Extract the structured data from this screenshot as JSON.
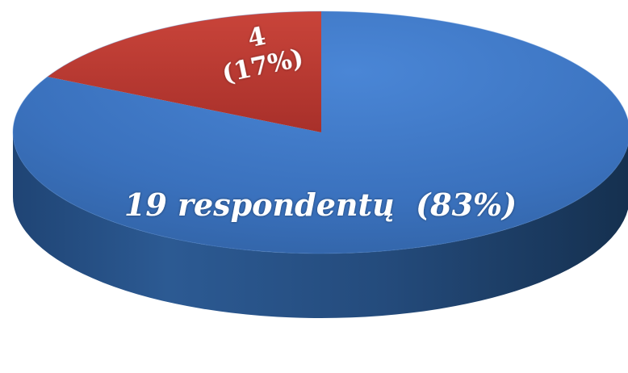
{
  "chart_data": {
    "type": "pie",
    "title": "",
    "legend": "none",
    "slices": [
      {
        "value": 19,
        "percent": 83,
        "color": "#3A73C0",
        "label_text": "19 respondentų  (83%)"
      },
      {
        "value": 4,
        "percent": 17,
        "color": "#C0392B",
        "label_lines": [
          "4",
          "(17%)"
        ]
      }
    ]
  }
}
